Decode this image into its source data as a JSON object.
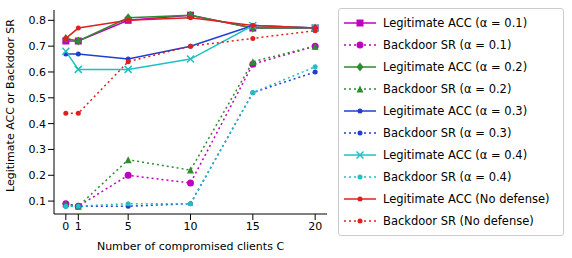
{
  "chart_data": {
    "type": "line",
    "x_label": "Number of compromised clients C",
    "y_label": "Legitimate ACC or Backdoor SR",
    "x": [
      0,
      1,
      5,
      10,
      15,
      20
    ],
    "xlim": [
      -0.95,
      20.95
    ],
    "xticks": [
      0,
      1,
      5,
      10,
      15,
      20
    ],
    "ylim": [
      0.05,
      0.84
    ],
    "yticks": [
      0.1,
      0.2,
      0.3,
      0.4,
      0.5,
      0.6,
      0.7,
      0.8
    ],
    "legend": "right",
    "grid": false,
    "series": [
      {
        "name": "Legitimate ACC (α = 0.1)",
        "color": "#c000c0",
        "marker": "square",
        "line_style": "solid",
        "values": [
          0.72,
          0.72,
          0.8,
          0.82,
          0.77,
          0.77
        ]
      },
      {
        "name": "Backdoor SR (α = 0.1)",
        "color": "#c000c0",
        "marker": "circle",
        "line_style": "dotted",
        "values": [
          0.09,
          0.08,
          0.2,
          0.17,
          0.63,
          0.7
        ]
      },
      {
        "name": "Legitimate ACC (α = 0.2)",
        "color": "#2e8b2e",
        "marker": "diamond",
        "line_style": "solid",
        "values": [
          0.73,
          0.72,
          0.81,
          0.82,
          0.77,
          0.77
        ]
      },
      {
        "name": "Backdoor SR (α = 0.2)",
        "color": "#2e8b2e",
        "marker": "triangle",
        "line_style": "dotted",
        "values": [
          0.09,
          0.08,
          0.26,
          0.22,
          0.64,
          0.7
        ]
      },
      {
        "name": "Legitimate ACC (α = 0.3)",
        "color": "#1f3fd0",
        "marker": "point",
        "line_style": "solid",
        "values": [
          0.67,
          0.67,
          0.65,
          0.7,
          0.78,
          0.77
        ]
      },
      {
        "name": "Backdoor SR (α = 0.3)",
        "color": "#1f3fd0",
        "marker": "point",
        "line_style": "dotted",
        "values": [
          0.08,
          0.08,
          0.08,
          0.09,
          0.52,
          0.6
        ]
      },
      {
        "name": "Legitimate ACC (α = 0.4)",
        "color": "#20c0c0",
        "marker": "cross",
        "line_style": "solid",
        "values": [
          0.68,
          0.61,
          0.61,
          0.65,
          0.78,
          0.77
        ]
      },
      {
        "name": "Backdoor SR (α = 0.4)",
        "color": "#20c0c0",
        "marker": "point",
        "line_style": "dotted",
        "values": [
          0.08,
          0.08,
          0.09,
          0.09,
          0.52,
          0.62
        ]
      },
      {
        "name": "Legitimate ACC (No defense)",
        "color": "#e02020",
        "marker": "point",
        "line_style": "solid",
        "values": [
          0.73,
          0.77,
          0.8,
          0.81,
          0.78,
          0.77
        ]
      },
      {
        "name": "Backdoor SR (No defense)",
        "color": "#e02020",
        "marker": "point",
        "line_style": "dotted",
        "values": [
          0.44,
          0.44,
          0.64,
          0.7,
          0.73,
          0.76
        ]
      }
    ]
  }
}
